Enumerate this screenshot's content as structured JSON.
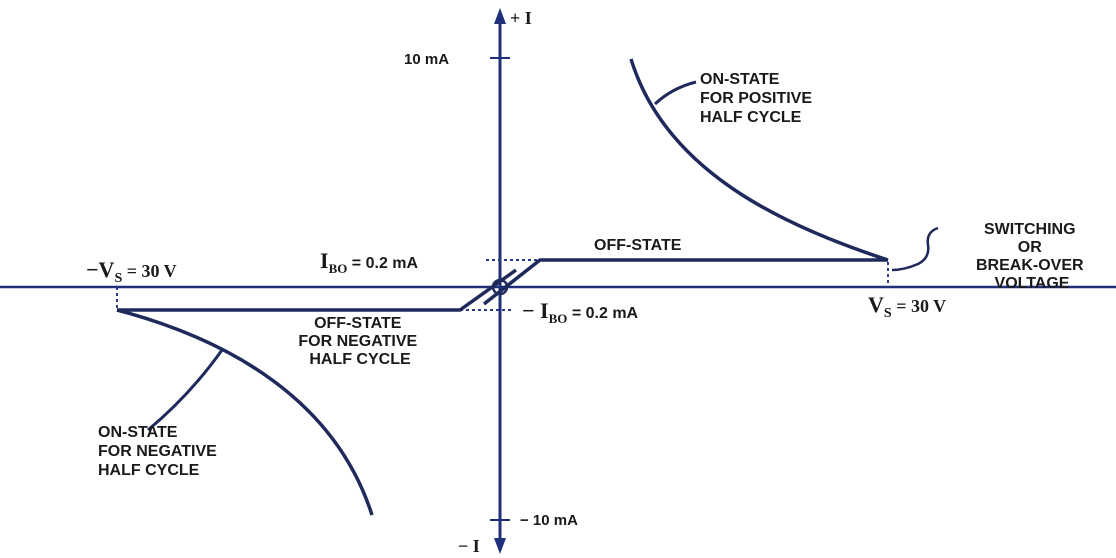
{
  "colors": {
    "axis": "#1f2f7a",
    "curve": "#1f2a5c",
    "dotted": "#2a3a8a",
    "text": "#1a1a1a"
  },
  "axes": {
    "y_pos_label": "+ I",
    "y_neg_label": "− I",
    "tick_top": "10 mA",
    "tick_bottom": "− 10 mA"
  },
  "labels": {
    "neg_vs": {
      "main": "−V",
      "sub": "S",
      "rest": " = 30 V"
    },
    "pos_vs": {
      "main": "V",
      "sub": "S",
      "rest": " = 30 V"
    },
    "ibo_pos": {
      "main": "I",
      "sub": "BO",
      "rest": " = 0.2 mA"
    },
    "ibo_neg": {
      "main": "− I",
      "sub": "BO",
      "rest": " = 0.2 mA"
    },
    "off_state_pos": "OFF-STATE",
    "on_state_pos": [
      "ON-STATE",
      "FOR POSITIVE",
      "HALF CYCLE"
    ],
    "off_state_neg": [
      "OFF-STATE",
      "FOR NEGATIVE",
      "HALF CYCLE"
    ],
    "on_state_neg": [
      "ON-STATE",
      "FOR NEGATIVE",
      "HALF CYCLE"
    ],
    "switching": [
      "SWITCHING",
      "OR",
      "BREAK-OVER",
      "VOLTAGE"
    ]
  }
}
